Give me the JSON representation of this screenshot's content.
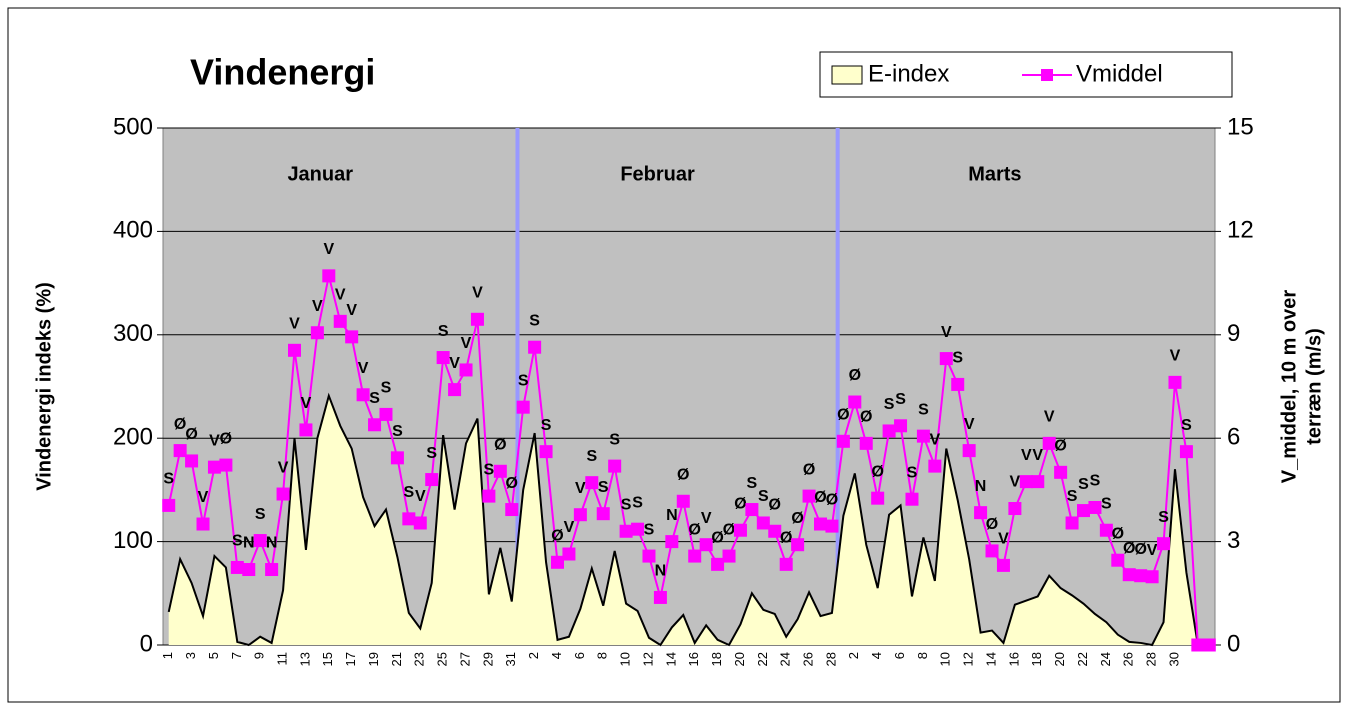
{
  "chart_data": {
    "type": "area_line",
    "title": "Vindenergi",
    "ylabel": "Vindenergi indeks (%)",
    "y2label": [
      "V_middel, 10 m over",
      "terræn (m/s)"
    ],
    "months": [
      {
        "label": "Januar",
        "days": 31
      },
      {
        "label": "Februar",
        "days": 28
      },
      {
        "label": "Marts",
        "days": 31
      }
    ],
    "categories": [
      "1",
      null,
      "3",
      null,
      "5",
      null,
      "7",
      null,
      "9",
      null,
      "11",
      null,
      "13",
      null,
      "15",
      null,
      "17",
      null,
      "19",
      null,
      "21",
      null,
      "23",
      null,
      "25",
      null,
      "27",
      null,
      "29",
      null,
      "31",
      null,
      "2",
      null,
      "4",
      null,
      "6",
      null,
      "8",
      null,
      "10",
      null,
      "12",
      null,
      "14",
      null,
      "16",
      null,
      "18",
      null,
      "20",
      null,
      "22",
      null,
      "24",
      null,
      "26",
      null,
      "28",
      null,
      "2",
      null,
      "4",
      null,
      "6",
      null,
      "8",
      null,
      "10",
      null,
      "12",
      null,
      "14",
      null,
      "16",
      null,
      "18",
      null,
      "20",
      null,
      "22",
      null,
      "24",
      null,
      "26",
      null,
      "28",
      null,
      "30",
      null,
      null,
      null
    ],
    "series": [
      {
        "name": "E-index",
        "color": "#ffffcc",
        "axis": "y",
        "values": [
          32,
          83,
          60,
          28,
          86,
          75,
          3,
          0,
          8,
          2,
          53,
          200,
          92,
          200,
          241,
          212,
          190,
          143,
          115,
          131,
          85,
          31,
          16,
          60,
          203,
          131,
          195,
          219,
          49,
          94,
          42,
          150,
          205,
          80,
          5,
          8,
          35,
          74,
          38,
          91,
          40,
          33,
          7,
          0,
          17,
          29,
          2,
          19,
          5,
          0,
          20,
          50,
          34,
          30,
          8,
          25,
          51,
          28,
          31,
          125,
          166,
          97,
          55,
          126,
          135,
          47,
          104,
          62,
          190,
          140,
          83,
          12,
          14,
          2,
          39,
          43,
          47,
          67,
          55,
          48,
          40,
          30,
          22,
          10,
          3,
          2,
          0,
          22,
          170,
          70,
          0,
          null
        ]
      },
      {
        "name": "Vmiddel",
        "color": "#ff00ff",
        "axis": "y2",
        "values": [
          4.05,
          5.64,
          5.34,
          3.51,
          5.16,
          5.22,
          2.25,
          2.19,
          3.03,
          2.19,
          4.38,
          8.55,
          6.24,
          9.06,
          10.71,
          9.39,
          8.94,
          7.26,
          6.39,
          6.69,
          5.43,
          3.66,
          3.54,
          4.8,
          8.34,
          7.41,
          7.98,
          9.45,
          4.32,
          5.04,
          3.93,
          6.9,
          8.64,
          5.61,
          2.4,
          2.64,
          3.78,
          4.71,
          3.81,
          5.19,
          3.3,
          3.36,
          2.58,
          1.38,
          3.0,
          4.17,
          2.58,
          2.91,
          2.34,
          2.58,
          3.33,
          3.93,
          3.54,
          3.3,
          2.34,
          2.91,
          4.32,
          3.51,
          3.45,
          5.91,
          7.05,
          5.85,
          4.26,
          6.21,
          6.36,
          4.23,
          6.06,
          5.19,
          8.31,
          7.56,
          5.64,
          3.84,
          2.73,
          2.31,
          3.96,
          4.74,
          4.74,
          5.85,
          5.01,
          3.54,
          3.9,
          3.99,
          3.33,
          2.46,
          2.04,
          2.01,
          1.98,
          2.94,
          7.62,
          5.61,
          0,
          0
        ],
        "point_labels": [
          "S",
          "Ø",
          "Ø",
          "V",
          "V",
          "Ø",
          "S",
          "N",
          "S",
          "N",
          "V",
          "V",
          "V",
          "V",
          "V",
          "V",
          "V",
          "V",
          "S",
          "S",
          "S",
          "S",
          "V",
          "S",
          "S",
          "V",
          "V",
          "V",
          "S",
          "Ø",
          "Ø",
          "S",
          "S",
          "S",
          "Ø",
          "V",
          "V",
          "S",
          "S",
          "S",
          "S",
          "S",
          "S",
          "N",
          "N",
          "Ø",
          "Ø",
          "V",
          "Ø",
          "Ø",
          "Ø",
          "S",
          "S",
          "Ø",
          "Ø",
          "Ø",
          "Ø",
          "Ø",
          "Ø",
          "Ø",
          "Ø",
          "Ø",
          "Ø",
          "S",
          "S",
          "S",
          "S",
          "V",
          "V",
          "S",
          "V",
          "N",
          "Ø",
          "V",
          "V",
          "V",
          "V",
          "V",
          "Ø",
          "S",
          "S",
          "S",
          "S",
          "Ø",
          "Ø",
          "Ø",
          "V",
          "S",
          "V",
          "S",
          null,
          null
        ]
      }
    ],
    "ylim": [
      0,
      500
    ],
    "yticks": [
      0,
      100,
      200,
      300,
      400,
      500
    ],
    "y2lim": [
      0,
      15
    ],
    "y2ticks": [
      0,
      3,
      6,
      9,
      12,
      15
    ],
    "grid": true,
    "legend": "top-right",
    "background": "#c0c0c0",
    "separator_color": "#9999ff"
  }
}
